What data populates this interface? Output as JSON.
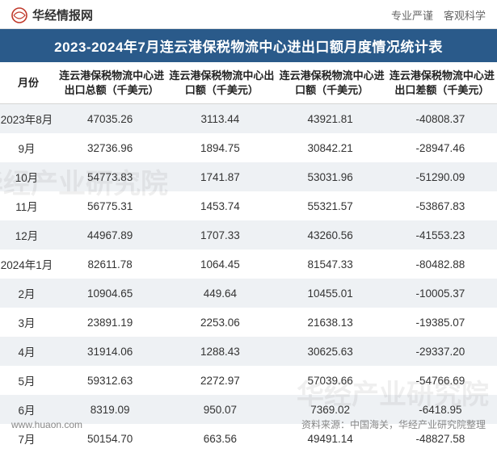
{
  "header": {
    "brand_name": "华经情报网",
    "tagline": "专业严谨　客观科学"
  },
  "title": "2023-2024年7月连云港保税物流中心进出口额月度情况统计表",
  "table": {
    "columns": [
      "月份",
      "连云港保税物流中心进出口总额（千美元）",
      "连云港保税物流中心出口额（千美元）",
      "连云港保税物流中心进口额（千美元）",
      "连云港保税物流中心进出口差额（千美元）"
    ],
    "rows": [
      {
        "month": "2023年8月",
        "total": "47035.26",
        "export": "3113.44",
        "import": "43921.81",
        "diff": "-40808.37"
      },
      {
        "month": "9月",
        "total": "32736.96",
        "export": "1894.75",
        "import": "30842.21",
        "diff": "-28947.46"
      },
      {
        "month": "10月",
        "total": "54773.83",
        "export": "1741.87",
        "import": "53031.96",
        "diff": "-51290.09"
      },
      {
        "month": "11月",
        "total": "56775.31",
        "export": "1453.74",
        "import": "55321.57",
        "diff": "-53867.83"
      },
      {
        "month": "12月",
        "total": "44967.89",
        "export": "1707.33",
        "import": "43260.56",
        "diff": "-41553.23"
      },
      {
        "month": "2024年1月",
        "total": "82611.78",
        "export": "1064.45",
        "import": "81547.33",
        "diff": "-80482.88"
      },
      {
        "month": "2月",
        "total": "10904.65",
        "export": "449.64",
        "import": "10455.01",
        "diff": "-10005.37"
      },
      {
        "month": "3月",
        "total": "23891.19",
        "export": "2253.06",
        "import": "21638.13",
        "diff": "-19385.07"
      },
      {
        "month": "4月",
        "total": "31914.06",
        "export": "1288.43",
        "import": "30625.63",
        "diff": "-29337.20"
      },
      {
        "month": "5月",
        "total": "59312.63",
        "export": "2272.97",
        "import": "57039.66",
        "diff": "-54766.69"
      },
      {
        "month": "6月",
        "total": "8319.09",
        "export": "950.07",
        "import": "7369.02",
        "diff": "-6418.95"
      },
      {
        "month": "7月",
        "total": "50154.70",
        "export": "663.56",
        "import": "49491.14",
        "diff": "-48827.58"
      }
    ]
  },
  "footer": {
    "url": "www.huaon.com",
    "source": "资料来源：中国海关，华经产业研究院整理"
  },
  "watermark": "华经产业研究院",
  "style": {
    "title_bg": "#2a5a8a",
    "title_fg": "#ffffff",
    "row_odd_bg": "#eef1f4",
    "row_even_bg": "#ffffff",
    "neg_color": "#1a6fb0",
    "text_color": "#333333",
    "header_border": "#d5d5d5",
    "font_family": "Microsoft YaHei",
    "title_fontsize": 17,
    "header_fontsize": 13,
    "cell_fontsize": 13.5,
    "footer_fontsize": 12
  }
}
